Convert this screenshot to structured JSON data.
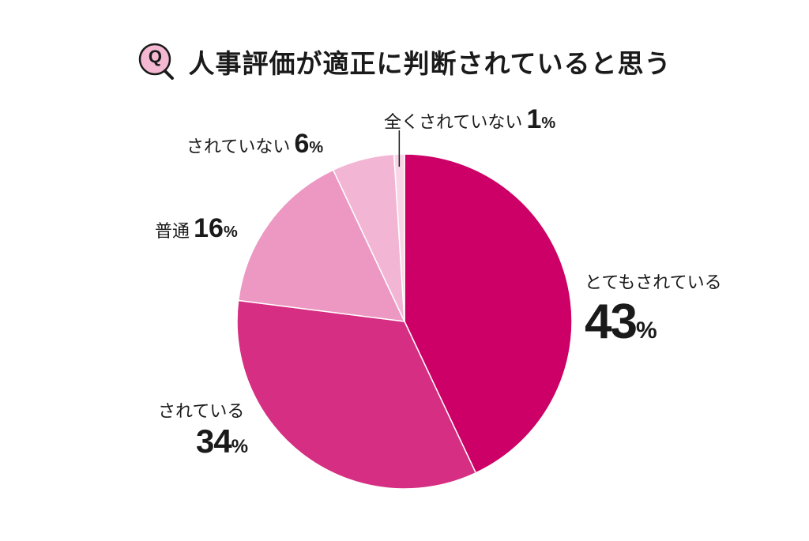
{
  "title": "人事評価が適正に判断されていると思う",
  "q_badge": "Q",
  "colors": {
    "accent": "#cc0066",
    "badge_fill": "#f4b8d2"
  },
  "chart_data": {
    "type": "pie",
    "start_angle_deg": 0,
    "direction": "clockwise",
    "percent_suffix": "%",
    "slices": [
      {
        "label": "とてもされている",
        "value": 43,
        "color": "#cc0066"
      },
      {
        "label": "されている",
        "value": 34,
        "color": "#d62e82"
      },
      {
        "label": "普通",
        "value": 16,
        "color": "#ec98c3"
      },
      {
        "label": "されていない",
        "value": 6,
        "color": "#f2b6d4"
      },
      {
        "label": "全くされていない",
        "value": 1,
        "color": "#f8d6e7"
      }
    ]
  }
}
